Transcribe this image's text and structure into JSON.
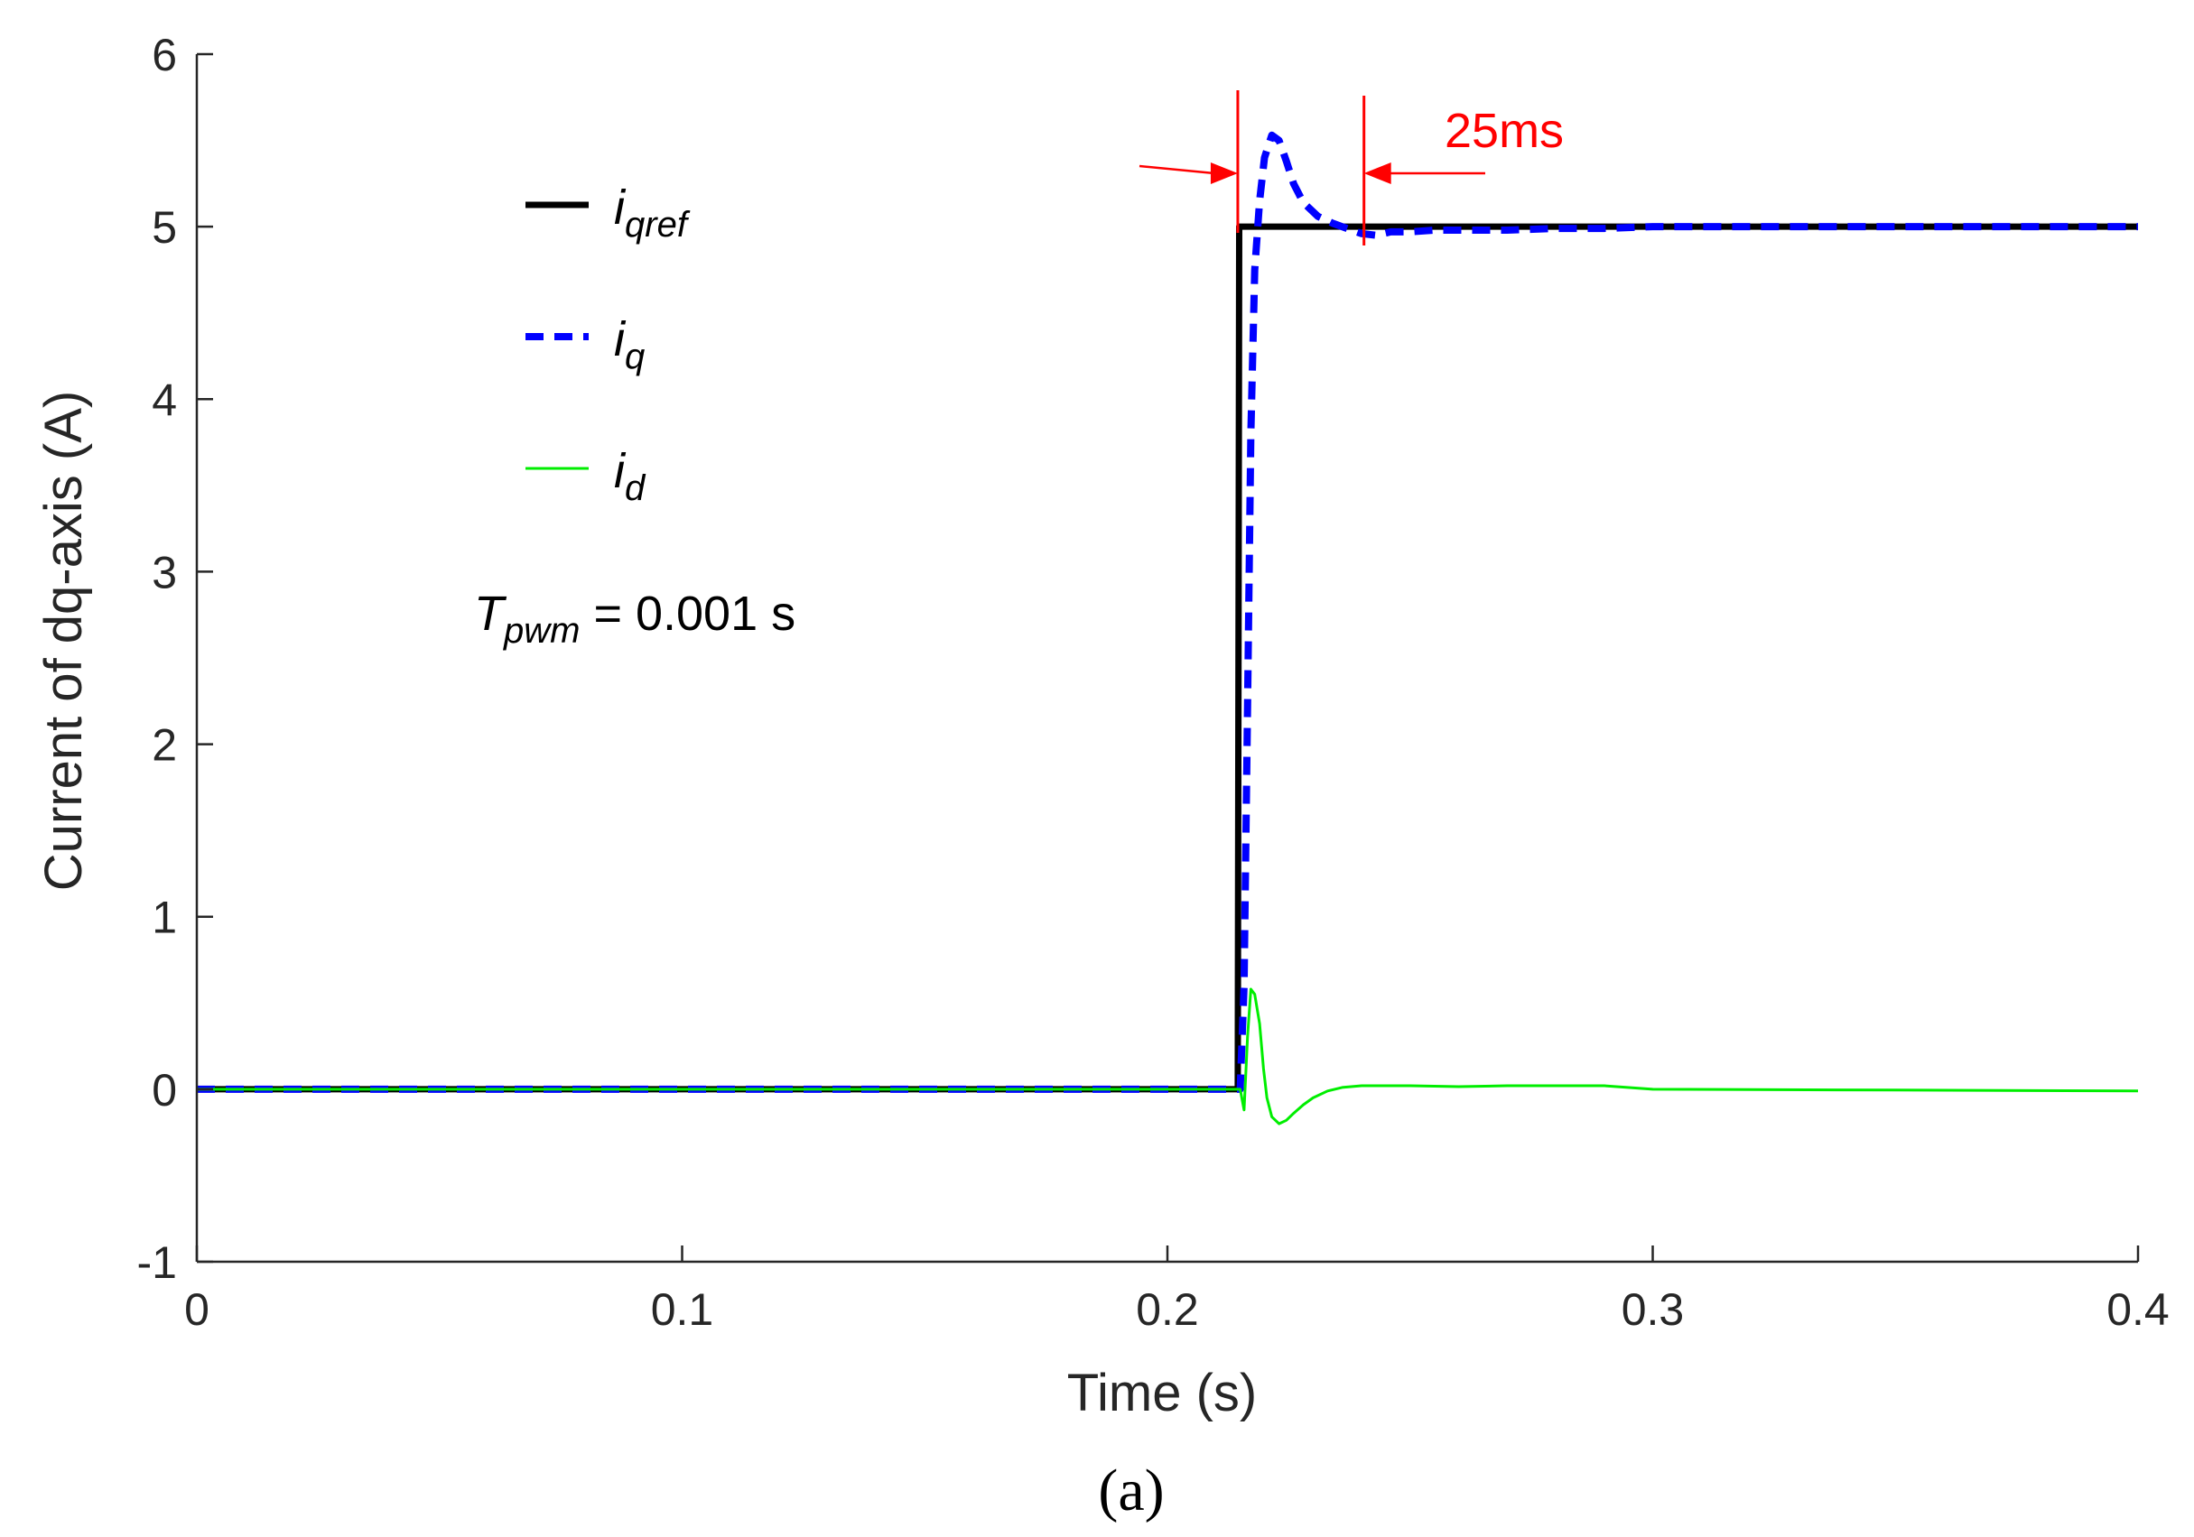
{
  "chart_data": {
    "type": "line",
    "xlabel": "Time (s)",
    "ylabel": "Current of dq-axis (A)",
    "xlim": [
      0,
      0.4
    ],
    "ylim": [
      -1,
      6
    ],
    "xticks": [
      0,
      0.1,
      0.2,
      0.3,
      0.4
    ],
    "xtick_labels": [
      "0",
      "0.1",
      "0.2",
      "0.3",
      "0.4"
    ],
    "yticks": [
      -1,
      0,
      1,
      2,
      3,
      4,
      5,
      6
    ],
    "ytick_labels": [
      "-1",
      "0",
      "1",
      "2",
      "3",
      "4",
      "5",
      "6"
    ],
    "grid": false,
    "legend_position": "upper-left",
    "series": [
      {
        "id": "iqref",
        "main": "i",
        "sub": "qref",
        "color": "#000000",
        "dash": "solid",
        "points": [
          [
            0,
            0
          ],
          [
            0.2145,
            0
          ],
          [
            0.2148,
            5
          ],
          [
            0.4,
            5
          ]
        ]
      },
      {
        "id": "iq",
        "main": "i",
        "sub": "q",
        "color": "#0000ff",
        "dash": "dashed",
        "points": [
          [
            0,
            0
          ],
          [
            0.215,
            0
          ],
          [
            0.2158,
            0.6
          ],
          [
            0.2165,
            2.2
          ],
          [
            0.2172,
            3.8
          ],
          [
            0.218,
            4.75
          ],
          [
            0.219,
            5.15
          ],
          [
            0.22,
            5.4
          ],
          [
            0.2215,
            5.53
          ],
          [
            0.223,
            5.5
          ],
          [
            0.2245,
            5.38
          ],
          [
            0.226,
            5.25
          ],
          [
            0.228,
            5.14
          ],
          [
            0.231,
            5.06
          ],
          [
            0.234,
            5.02
          ],
          [
            0.237,
            4.99
          ],
          [
            0.24,
            4.96
          ],
          [
            0.243,
            4.95
          ],
          [
            0.246,
            4.97
          ],
          [
            0.25,
            4.97
          ],
          [
            0.255,
            4.98
          ],
          [
            0.26,
            4.98
          ],
          [
            0.27,
            4.98
          ],
          [
            0.28,
            4.99
          ],
          [
            0.29,
            4.99
          ],
          [
            0.3,
            5.0
          ],
          [
            0.35,
            5.0
          ],
          [
            0.4,
            5.0
          ]
        ]
      },
      {
        "id": "id",
        "main": "i",
        "sub": "d",
        "color": "#00ee00",
        "dash": "solid",
        "points": [
          [
            0,
            0
          ],
          [
            0.215,
            0
          ],
          [
            0.2158,
            -0.12
          ],
          [
            0.2165,
            0.3
          ],
          [
            0.2172,
            0.58
          ],
          [
            0.218,
            0.55
          ],
          [
            0.219,
            0.38
          ],
          [
            0.2198,
            0.12
          ],
          [
            0.2205,
            -0.05
          ],
          [
            0.2215,
            -0.16
          ],
          [
            0.223,
            -0.2
          ],
          [
            0.2245,
            -0.18
          ],
          [
            0.226,
            -0.14
          ],
          [
            0.228,
            -0.09
          ],
          [
            0.23,
            -0.05
          ],
          [
            0.233,
            -0.01
          ],
          [
            0.236,
            0.01
          ],
          [
            0.24,
            0.02
          ],
          [
            0.25,
            0.02
          ],
          [
            0.26,
            0.015
          ],
          [
            0.27,
            0.02
          ],
          [
            0.28,
            0.02
          ],
          [
            0.29,
            0.02
          ],
          [
            0.3,
            0.0
          ],
          [
            0.35,
            -0.005
          ],
          [
            0.4,
            -0.01
          ]
        ]
      }
    ],
    "annotations": {
      "tpwm_symbol": "T",
      "tpwm_sub": "pwm",
      "tpwm_value": " = 0.001 s",
      "settling": "25ms",
      "marker_x": [
        0.2145,
        0.2405
      ]
    }
  },
  "caption": "(a)",
  "colors": {
    "annotation": "#ff0000",
    "axis": "#262626"
  }
}
